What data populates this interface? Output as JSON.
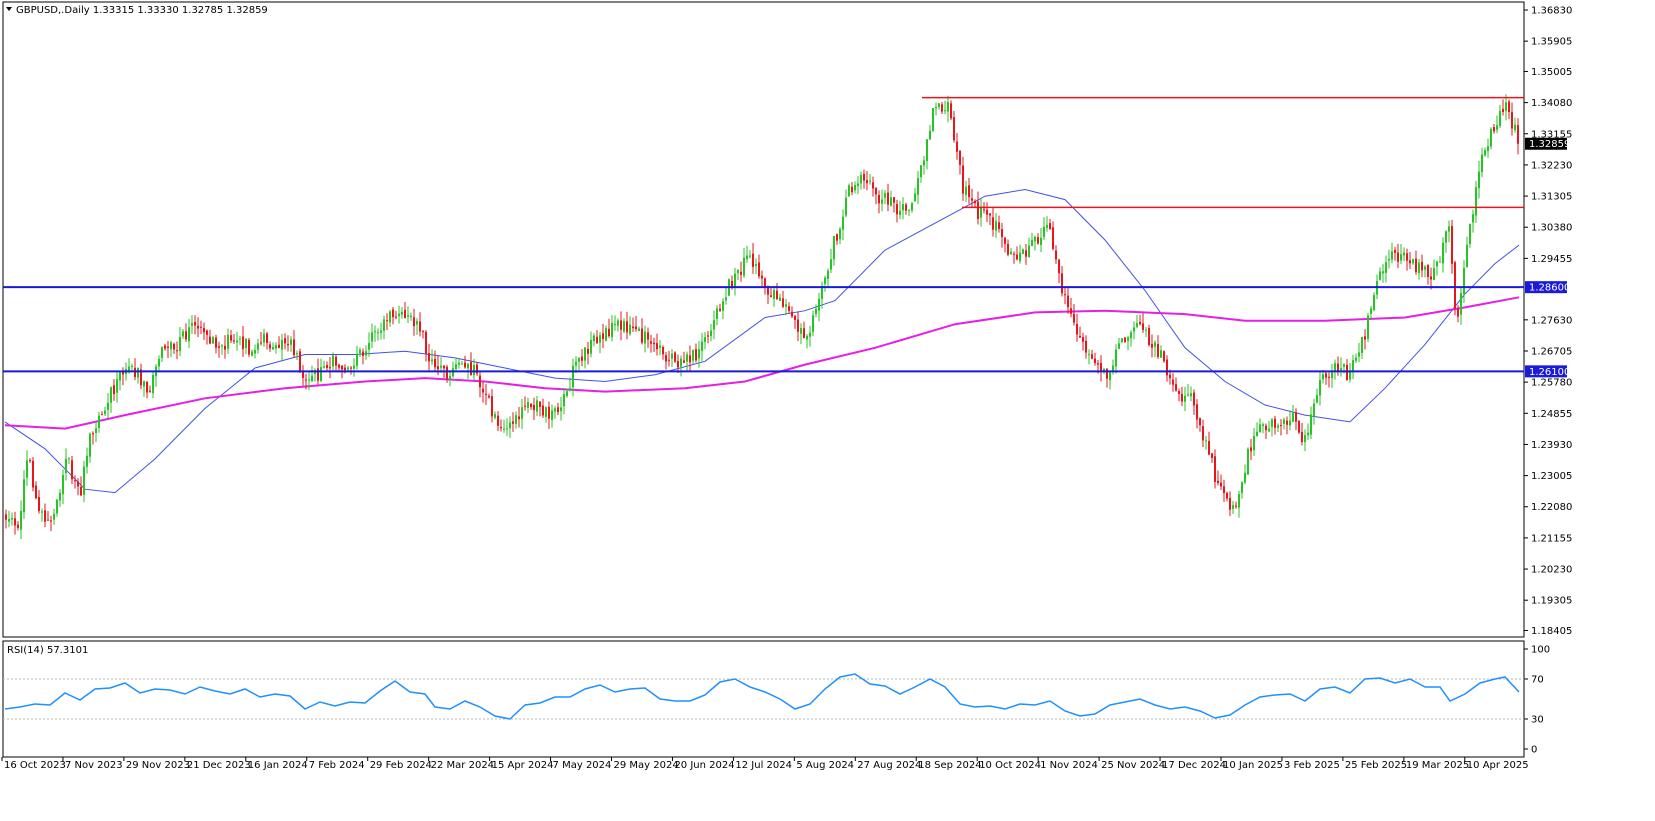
{
  "header": {
    "symbol_line": "GBPUSD,.Daily  1.33315 1.33330 1.32785 1.32859",
    "rsi_line": "RSI(14) 57.3101"
  },
  "colors": {
    "bull": "#26c526",
    "bear": "#e8151b",
    "ma_short": "#4250e8",
    "ma_long": "#e61ee6",
    "h_level": "#1a1adb",
    "resistance": "#e8151b",
    "rsi": "#1e90ff",
    "label_bg": "#1a1adb",
    "last_bg": "#000000"
  },
  "chart_data": [
    {
      "type": "candlestick",
      "symbol": "GBPUSD",
      "timeframe": "Daily",
      "last_price": 1.32859,
      "ylim": [
        1.1845,
        1.3683
      ],
      "y_ticks": [
        "1.36830",
        "1.35905",
        "1.35005",
        "1.34080",
        "1.33155",
        "1.32230",
        "1.31305",
        "1.30380",
        "1.29455",
        "1.28600",
        "1.27630",
        "1.26705",
        "1.26100",
        "1.25780",
        "1.24855",
        "1.23930",
        "1.23005",
        "1.22080",
        "1.21155",
        "1.20230",
        "1.19305",
        "1.18405"
      ],
      "x_ticks": [
        "16 Oct 2023",
        "7 Nov 2023",
        "29 Nov 2023",
        "21 Dec 2023",
        "16 Jan 2024",
        "7 Feb 2024",
        "29 Feb 2024",
        "22 Mar 2024",
        "15 Apr 2024",
        "7 May 2024",
        "29 May 2024",
        "20 Jun 2024",
        "12 Jul 2024",
        "5 Aug 2024",
        "27 Aug 2024",
        "18 Sep 2024",
        "10 Oct 2024",
        "1 Nov 2024",
        "25 Nov 2024",
        "17 Dec 2024",
        "10 Jan 2025",
        "3 Feb 2025",
        "25 Feb 2025",
        "19 Mar 2025",
        "10 Apr 2025"
      ],
      "price_path": [
        [
          0,
          1.2185
        ],
        [
          12,
          1.214
        ],
        [
          22,
          1.235
        ],
        [
          33,
          1.22
        ],
        [
          45,
          1.215
        ],
        [
          60,
          1.235
        ],
        [
          75,
          1.225
        ],
        [
          85,
          1.243
        ],
        [
          100,
          1.251
        ],
        [
          118,
          1.263
        ],
        [
          133,
          1.26
        ],
        [
          143,
          1.256
        ],
        [
          157,
          1.27
        ],
        [
          172,
          1.269
        ],
        [
          186,
          1.274
        ],
        [
          200,
          1.272
        ],
        [
          214,
          1.269
        ],
        [
          229,
          1.27
        ],
        [
          243,
          1.268
        ],
        [
          257,
          1.27
        ],
        [
          271,
          1.269
        ],
        [
          285,
          1.269
        ],
        [
          300,
          1.258
        ],
        [
          314,
          1.26
        ],
        [
          328,
          1.264
        ],
        [
          343,
          1.263
        ],
        [
          357,
          1.267
        ],
        [
          371,
          1.272
        ],
        [
          386,
          1.279
        ],
        [
          400,
          1.277
        ],
        [
          414,
          1.274
        ],
        [
          429,
          1.26
        ],
        [
          443,
          1.261
        ],
        [
          457,
          1.264
        ],
        [
          471,
          1.26
        ],
        [
          486,
          1.249
        ],
        [
          500,
          1.242
        ],
        [
          514,
          1.248
        ],
        [
          529,
          1.252
        ],
        [
          543,
          1.249
        ],
        [
          557,
          1.251
        ],
        [
          571,
          1.264
        ],
        [
          586,
          1.27
        ],
        [
          600,
          1.272
        ],
        [
          614,
          1.275
        ],
        [
          629,
          1.272
        ],
        [
          643,
          1.27
        ],
        [
          657,
          1.266
        ],
        [
          671,
          1.264
        ],
        [
          686,
          1.265
        ],
        [
          700,
          1.27
        ],
        [
          714,
          1.28
        ],
        [
          729,
          1.29
        ],
        [
          743,
          1.294
        ],
        [
          757,
          1.287
        ],
        [
          771,
          1.283
        ],
        [
          786,
          1.278
        ],
        [
          800,
          1.27
        ],
        [
          814,
          1.284
        ],
        [
          829,
          1.3
        ],
        [
          843,
          1.315
        ],
        [
          857,
          1.319
        ],
        [
          871,
          1.313
        ],
        [
          886,
          1.311
        ],
        [
          900,
          1.308
        ],
        [
          914,
          1.32
        ],
        [
          929,
          1.342
        ],
        [
          943,
          1.339
        ],
        [
          957,
          1.316
        ],
        [
          971,
          1.308
        ],
        [
          986,
          1.306
        ],
        [
          1000,
          1.298
        ],
        [
          1014,
          1.295
        ],
        [
          1029,
          1.3
        ],
        [
          1043,
          1.303
        ],
        [
          1057,
          1.285
        ],
        [
          1071,
          1.27
        ],
        [
          1086,
          1.265
        ],
        [
          1100,
          1.26
        ],
        [
          1114,
          1.27
        ],
        [
          1129,
          1.276
        ],
        [
          1143,
          1.27
        ],
        [
          1157,
          1.265
        ],
        [
          1171,
          1.254
        ],
        [
          1186,
          1.252
        ],
        [
          1200,
          1.24
        ],
        [
          1214,
          1.225
        ],
        [
          1229,
          1.22
        ],
        [
          1243,
          1.238
        ],
        [
          1257,
          1.245
        ],
        [
          1271,
          1.246
        ],
        [
          1286,
          1.247
        ],
        [
          1300,
          1.24
        ],
        [
          1314,
          1.258
        ],
        [
          1329,
          1.262
        ],
        [
          1343,
          1.26
        ],
        [
          1357,
          1.27
        ],
        [
          1371,
          1.289
        ],
        [
          1386,
          1.295
        ],
        [
          1400,
          1.294
        ],
        [
          1414,
          1.292
        ],
        [
          1429,
          1.29
        ],
        [
          1443,
          1.306
        ],
        [
          1450,
          1.275
        ],
        [
          1457,
          1.289
        ],
        [
          1471,
          1.318
        ],
        [
          1486,
          1.333
        ],
        [
          1500,
          1.339
        ],
        [
          1514,
          1.3286
        ]
      ],
      "series": [
        {
          "name": "MA-short",
          "values": [
            [
              0,
              1.246
            ],
            [
              40,
              1.238
            ],
            [
              80,
              1.226
            ],
            [
              110,
              1.225
            ],
            [
              150,
              1.235
            ],
            [
              200,
              1.25
            ],
            [
              250,
              1.262
            ],
            [
              300,
              1.266
            ],
            [
              350,
              1.266
            ],
            [
              400,
              1.267
            ],
            [
              450,
              1.265
            ],
            [
              500,
              1.262
            ],
            [
              550,
              1.259
            ],
            [
              600,
              1.258
            ],
            [
              650,
              1.26
            ],
            [
              700,
              1.264
            ],
            [
              760,
              1.277
            ],
            [
              800,
              1.279
            ],
            [
              830,
              1.282
            ],
            [
              880,
              1.297
            ],
            [
              930,
              1.305
            ],
            [
              980,
              1.313
            ],
            [
              1020,
              1.315
            ],
            [
              1060,
              1.312
            ],
            [
              1100,
              1.3
            ],
            [
              1140,
              1.285
            ],
            [
              1180,
              1.268
            ],
            [
              1220,
              1.258
            ],
            [
              1260,
              1.251
            ],
            [
              1300,
              1.248
            ],
            [
              1345,
              1.246
            ],
            [
              1380,
              1.256
            ],
            [
              1420,
              1.269
            ],
            [
              1460,
              1.284
            ],
            [
              1490,
              1.293
            ],
            [
              1514,
              1.2985
            ]
          ]
        },
        {
          "name": "MA-long",
          "values": [
            [
              0,
              1.245
            ],
            [
              60,
              1.244
            ],
            [
              120,
              1.248
            ],
            [
              200,
              1.253
            ],
            [
              280,
              1.256
            ],
            [
              360,
              1.258
            ],
            [
              420,
              1.259
            ],
            [
              480,
              1.258
            ],
            [
              540,
              1.256
            ],
            [
              600,
              1.255
            ],
            [
              680,
              1.256
            ],
            [
              740,
              1.258
            ],
            [
              800,
              1.263
            ],
            [
              870,
              1.268
            ],
            [
              950,
              1.275
            ],
            [
              1030,
              1.2785
            ],
            [
              1100,
              1.279
            ],
            [
              1180,
              1.278
            ],
            [
              1240,
              1.276
            ],
            [
              1320,
              1.276
            ],
            [
              1400,
              1.277
            ],
            [
              1460,
              1.28
            ],
            [
              1514,
              1.283
            ]
          ]
        }
      ],
      "levels": [
        {
          "value": 1.286,
          "label": "1.28600",
          "color": "h_level",
          "x_start": null
        },
        {
          "value": 1.261,
          "label": "1.26100",
          "color": "h_level",
          "x_start": null
        },
        {
          "value": 1.3423,
          "label": "",
          "color": "resistance",
          "x_start": 922
        },
        {
          "value": 1.3097,
          "label": "",
          "color": "resistance",
          "x_start": 962
        }
      ],
      "last_label": "1.32859"
    },
    {
      "type": "line",
      "name": "RSI(14)",
      "current": 57.3101,
      "ylim": [
        0,
        100
      ],
      "y_ticks": [
        "100",
        "70",
        "30",
        "0"
      ],
      "levels": [
        70,
        30
      ],
      "values": [
        [
          0,
          40
        ],
        [
          15,
          42
        ],
        [
          30,
          45
        ],
        [
          45,
          44
        ],
        [
          60,
          56
        ],
        [
          75,
          49
        ],
        [
          90,
          60
        ],
        [
          105,
          61
        ],
        [
          120,
          66
        ],
        [
          135,
          56
        ],
        [
          150,
          60
        ],
        [
          165,
          59
        ],
        [
          180,
          55
        ],
        [
          195,
          62
        ],
        [
          210,
          58
        ],
        [
          225,
          55
        ],
        [
          240,
          60
        ],
        [
          255,
          52
        ],
        [
          270,
          55
        ],
        [
          285,
          53
        ],
        [
          300,
          40
        ],
        [
          315,
          47
        ],
        [
          330,
          43
        ],
        [
          345,
          47
        ],
        [
          360,
          46
        ],
        [
          375,
          58
        ],
        [
          390,
          68
        ],
        [
          405,
          57
        ],
        [
          420,
          55
        ],
        [
          430,
          42
        ],
        [
          445,
          40
        ],
        [
          460,
          48
        ],
        [
          475,
          42
        ],
        [
          490,
          33
        ],
        [
          505,
          30
        ],
        [
          520,
          44
        ],
        [
          535,
          46
        ],
        [
          550,
          52
        ],
        [
          565,
          52
        ],
        [
          580,
          60
        ],
        [
          595,
          64
        ],
        [
          610,
          57
        ],
        [
          625,
          60
        ],
        [
          640,
          61
        ],
        [
          655,
          50
        ],
        [
          670,
          48
        ],
        [
          685,
          48
        ],
        [
          700,
          54
        ],
        [
          715,
          67
        ],
        [
          730,
          70
        ],
        [
          745,
          62
        ],
        [
          760,
          57
        ],
        [
          775,
          50
        ],
        [
          790,
          40
        ],
        [
          805,
          45
        ],
        [
          820,
          60
        ],
        [
          835,
          72
        ],
        [
          850,
          75
        ],
        [
          865,
          65
        ],
        [
          880,
          63
        ],
        [
          895,
          55
        ],
        [
          910,
          62
        ],
        [
          925,
          70
        ],
        [
          940,
          62
        ],
        [
          955,
          45
        ],
        [
          970,
          42
        ],
        [
          985,
          43
        ],
        [
          1000,
          40
        ],
        [
          1015,
          45
        ],
        [
          1030,
          44
        ],
        [
          1045,
          48
        ],
        [
          1060,
          38
        ],
        [
          1075,
          33
        ],
        [
          1090,
          35
        ],
        [
          1105,
          44
        ],
        [
          1120,
          47
        ],
        [
          1135,
          50
        ],
        [
          1150,
          44
        ],
        [
          1165,
          40
        ],
        [
          1180,
          42
        ],
        [
          1195,
          38
        ],
        [
          1210,
          31
        ],
        [
          1225,
          34
        ],
        [
          1240,
          44
        ],
        [
          1255,
          52
        ],
        [
          1270,
          54
        ],
        [
          1285,
          55
        ],
        [
          1300,
          48
        ],
        [
          1315,
          60
        ],
        [
          1330,
          62
        ],
        [
          1345,
          56
        ],
        [
          1360,
          70
        ],
        [
          1375,
          71
        ],
        [
          1390,
          66
        ],
        [
          1405,
          70
        ],
        [
          1420,
          62
        ],
        [
          1435,
          62
        ],
        [
          1445,
          48
        ],
        [
          1460,
          55
        ],
        [
          1475,
          66
        ],
        [
          1490,
          70
        ],
        [
          1500,
          72
        ],
        [
          1514,
          57
        ]
      ]
    }
  ]
}
